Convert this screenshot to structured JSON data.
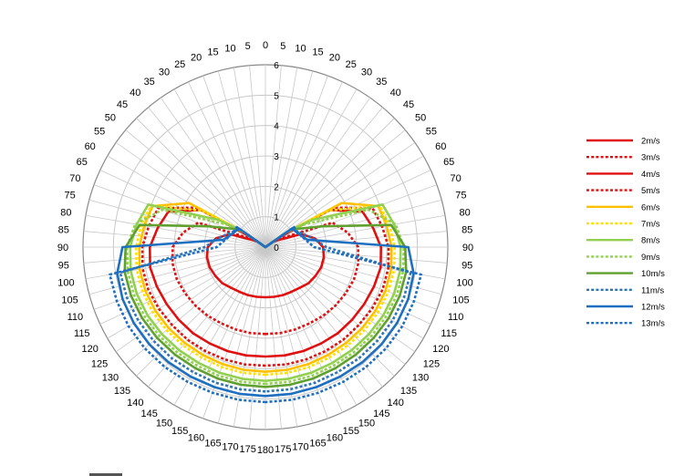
{
  "chart_data": {
    "type": "polar-line",
    "title": "",
    "angular_axis": {
      "range_deg": [
        0,
        180
      ],
      "mirrored": true,
      "tick_step_deg": 5,
      "tick_labels": [
        "0",
        "5",
        "10",
        "15",
        "20",
        "25",
        "30",
        "35",
        "40",
        "45",
        "50",
        "55",
        "60",
        "65",
        "70",
        "75",
        "80",
        "85",
        "90",
        "95",
        "100",
        "105",
        "110",
        "115",
        "120",
        "125",
        "130",
        "135",
        "140",
        "145",
        "150",
        "155",
        "160",
        "165",
        "170",
        "175",
        "180"
      ]
    },
    "radial_axis": {
      "range": [
        0,
        6
      ],
      "ticks": [
        "0",
        "1",
        "2",
        "3",
        "4",
        "5",
        "6"
      ]
    },
    "angles_deg": [
      0,
      15,
      30,
      45,
      55,
      60,
      70,
      80,
      90,
      100,
      110,
      120,
      130,
      140,
      150,
      160,
      170,
      180
    ],
    "series": [
      {
        "name": "2m/s",
        "color": "#e01010",
        "dash": "solid",
        "values": [
          0,
          0,
          0,
          0,
          0.3,
          0.45,
          1.25,
          1.65,
          1.9,
          1.95,
          1.95,
          1.9,
          1.85,
          1.75,
          1.7,
          1.68,
          1.66,
          1.65
        ]
      },
      {
        "name": "3m/s",
        "color": "#e01010",
        "dash": "dotted",
        "values": [
          0,
          0,
          0,
          0,
          0.4,
          0.55,
          2.35,
          2.75,
          3.05,
          3.1,
          3.1,
          3.05,
          3.0,
          2.95,
          2.9,
          2.88,
          2.87,
          2.86
        ]
      },
      {
        "name": "4m/s",
        "color": "#e01010",
        "dash": "solid",
        "values": [
          0,
          0,
          0,
          0,
          0.55,
          2.45,
          3.4,
          3.6,
          3.8,
          3.85,
          3.8,
          3.75,
          3.72,
          3.7,
          3.66,
          3.64,
          3.62,
          3.6
        ]
      },
      {
        "name": "5m/s",
        "color": "#e01010",
        "dash": "dotted",
        "values": [
          0,
          0,
          0,
          0,
          0.65,
          2.6,
          3.75,
          3.9,
          4.05,
          4.1,
          4.1,
          4.05,
          4.0,
          3.98,
          3.95,
          3.93,
          3.92,
          3.9
        ]
      },
      {
        "name": "6m/s",
        "color": "#ffc000",
        "dash": "solid",
        "values": [
          0,
          0,
          0,
          0,
          0.8,
          2.9,
          3.95,
          4.05,
          4.15,
          4.2,
          4.2,
          4.18,
          4.15,
          4.12,
          4.1,
          4.1,
          4.1,
          4.1
        ]
      },
      {
        "name": "7m/s",
        "color": "#ffe000",
        "dash": "dotted",
        "values": [
          0,
          0,
          0,
          0,
          0.85,
          2.4,
          4.0,
          4.15,
          4.25,
          4.3,
          4.3,
          4.28,
          4.25,
          4.22,
          4.2,
          4.2,
          4.2,
          4.2
        ]
      },
      {
        "name": "8m/s",
        "color": "#92d050",
        "dash": "solid",
        "values": [
          0,
          0,
          0,
          0,
          0.9,
          1.8,
          4.1,
          4.3,
          4.45,
          4.5,
          4.5,
          4.48,
          4.45,
          4.42,
          4.4,
          4.4,
          4.4,
          4.4
        ]
      },
      {
        "name": "9m/s",
        "color": "#92d050",
        "dash": "dotted",
        "values": [
          0,
          0,
          0,
          0,
          0.95,
          1.5,
          3.6,
          4.35,
          4.55,
          4.6,
          4.6,
          4.58,
          4.55,
          4.52,
          4.5,
          4.5,
          4.5,
          4.5
        ]
      },
      {
        "name": "10m/s",
        "color": "#60a030",
        "dash": "solid",
        "values": [
          0,
          0,
          0,
          0,
          1.0,
          1.2,
          2.0,
          4.2,
          4.6,
          4.7,
          4.7,
          4.68,
          4.65,
          4.62,
          4.6,
          4.6,
          4.6,
          4.6
        ]
      },
      {
        "name": "11m/s",
        "color": "#2e75b6",
        "dash": "dotted",
        "values": [
          0,
          0,
          0,
          0,
          1.05,
          1.1,
          1.3,
          1.6,
          2.0,
          4.85,
          4.85,
          4.83,
          4.8,
          4.78,
          4.75,
          4.75,
          4.75,
          4.75
        ]
      },
      {
        "name": "12m/s",
        "color": "#1f6fc0",
        "dash": "solid",
        "values": [
          0,
          0,
          0,
          0,
          1.1,
          1.1,
          1.2,
          1.4,
          4.7,
          4.95,
          5.0,
          5.0,
          4.98,
          4.95,
          4.92,
          4.9,
          4.9,
          4.9
        ]
      },
      {
        "name": "13m/s",
        "color": "#1f6fc0",
        "dash": "dotted",
        "values": [
          0,
          0,
          0,
          0,
          1.15,
          1.15,
          1.2,
          1.35,
          1.6,
          5.2,
          5.2,
          5.2,
          5.18,
          5.15,
          5.12,
          5.1,
          5.1,
          5.1
        ]
      }
    ],
    "legend_position": "right"
  }
}
